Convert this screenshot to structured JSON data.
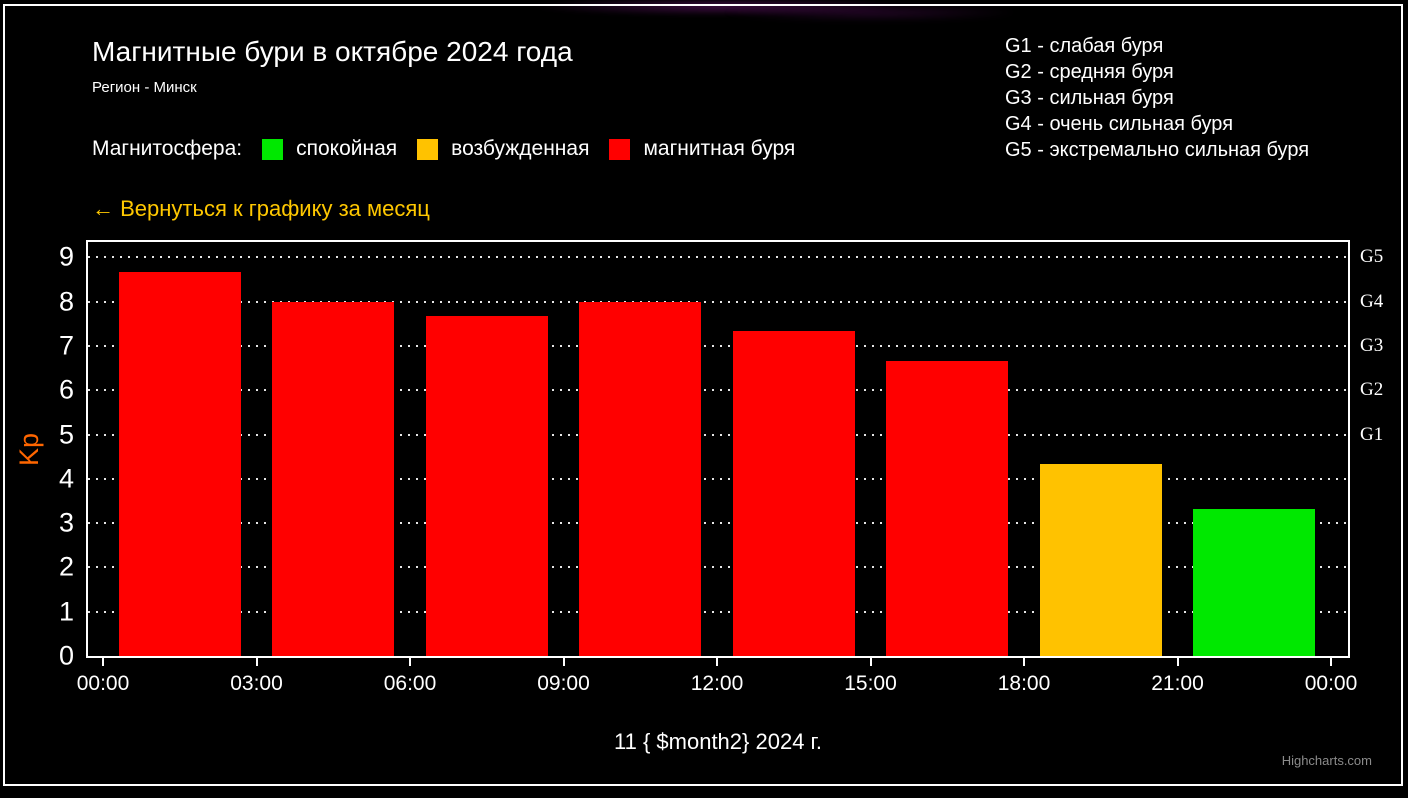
{
  "window": {
    "background": "#000000",
    "frame_color": "#FFFFFF",
    "credit": "Highcharts.com"
  },
  "header": {
    "title": "Магнитные бури в октябре 2024 года",
    "subtitle": "Регион - Минск"
  },
  "magnetosphere_legend": {
    "label": "Магнитосфера:",
    "items": [
      {
        "label": "спокойная",
        "status": "calm",
        "color": "#00E800"
      },
      {
        "label": "возбужденная",
        "status": "excited",
        "color": "#FFC200"
      },
      {
        "label": "магнитная буря",
        "status": "storm",
        "color": "#FF0000"
      }
    ]
  },
  "storm_scale_info": {
    "lines": [
      "G1 - слабая буря",
      "G2 - средняя буря",
      "G3 - сильная буря",
      "G4 - очень сильная буря",
      "G5 - экстремально сильная буря"
    ]
  },
  "back_link": {
    "label": "← Вернуться к графику за месяц",
    "color": "#FFC800"
  },
  "chart_data": {
    "type": "bar",
    "title": "Магнитные бури в октябре 2024 года",
    "subtitle": "Регион - Минск",
    "xlabel": "11 { $month2} 2024 г.",
    "ylabel": "Kp",
    "ylim": [
      0,
      9.35
    ],
    "grid": "dotted horizontal gridlines at each integer 1-9",
    "legend_position": "top-left custom",
    "x_tick_labels": [
      "00:00",
      "03:00",
      "06:00",
      "09:00",
      "12:00",
      "15:00",
      "18:00",
      "21:00",
      "00:00"
    ],
    "yaxis": {
      "title": "Kp",
      "title_color": "#FF6600",
      "ticks": [
        0,
        1,
        2,
        3,
        4,
        5,
        6,
        7,
        8,
        9
      ],
      "max": 9.35
    },
    "yaxis_right": {
      "labels": [
        {
          "label": "G1",
          "value": 5
        },
        {
          "label": "G2",
          "value": 6
        },
        {
          "label": "G3",
          "value": 7
        },
        {
          "label": "G4",
          "value": 8
        },
        {
          "label": "G5",
          "value": 9
        }
      ]
    },
    "status_colors": {
      "calm": "#00E800",
      "excited": "#FFC200",
      "storm": "#FF0000"
    },
    "series": [
      {
        "name": "Kp",
        "points": [
          {
            "time": "00:00",
            "value": 8.67,
            "status": "storm"
          },
          {
            "time": "03:00",
            "value": 8.0,
            "status": "storm"
          },
          {
            "time": "06:00",
            "value": 7.67,
            "status": "storm"
          },
          {
            "time": "09:00",
            "value": 8.0,
            "status": "storm"
          },
          {
            "time": "12:00",
            "value": 7.33,
            "status": "storm"
          },
          {
            "time": "15:00",
            "value": 6.67,
            "status": "storm"
          },
          {
            "time": "18:00",
            "value": 4.33,
            "status": "excited"
          },
          {
            "time": "21:00",
            "value": 3.33,
            "status": "calm"
          }
        ]
      }
    ]
  }
}
